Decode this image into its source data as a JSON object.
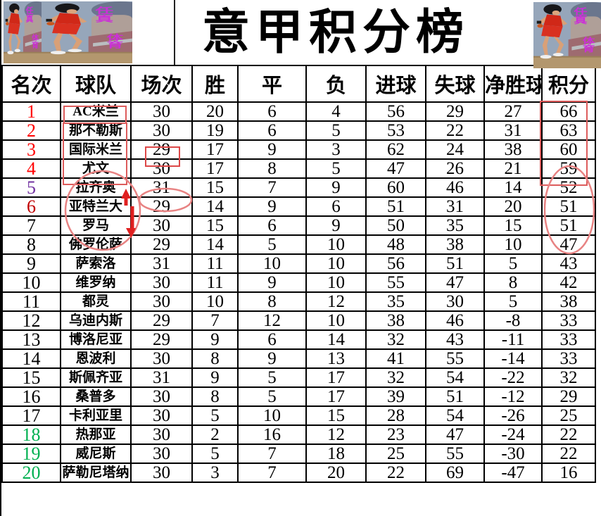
{
  "title": "意甲积分榜",
  "images": {
    "description": "slam-dunk-basketball-player-artwork",
    "watermark_top": "任真",
    "watermark_bottom": "体育",
    "watermark_color": "#cc2fd8"
  },
  "colors": {
    "rank_red": "#ff0000",
    "rank_purple": "#7030a0",
    "rank_darkred": "#c00000",
    "rank_green": "#00b050",
    "grid": "#000000",
    "annotation_box": "#dd5c5c",
    "annotation_ellipse": "#e88383",
    "annotation_arrow": "#e02020"
  },
  "chart_data": {
    "type": "table",
    "title": "意甲积分榜",
    "columns": [
      "名次",
      "球队",
      "场次",
      "胜",
      "平",
      "负",
      "进球",
      "失球",
      "净胜球",
      "积分"
    ],
    "rank_colors": [
      "red",
      "red",
      "red",
      "red",
      "purple",
      "darkred",
      "black",
      "black",
      "black",
      "black",
      "black",
      "black",
      "black",
      "black",
      "black",
      "black",
      "black",
      "green",
      "green",
      "green"
    ],
    "rows": [
      [
        "1",
        "AC米兰",
        "30",
        "20",
        "6",
        "4",
        "56",
        "29",
        "27",
        "66"
      ],
      [
        "2",
        "那不勒斯",
        "30",
        "19",
        "6",
        "5",
        "53",
        "22",
        "31",
        "63"
      ],
      [
        "3",
        "国际米兰",
        "29",
        "17",
        "9",
        "3",
        "62",
        "24",
        "38",
        "60"
      ],
      [
        "4",
        "尤文",
        "30",
        "17",
        "8",
        "5",
        "47",
        "26",
        "21",
        "59"
      ],
      [
        "5",
        "拉齐奥",
        "31",
        "15",
        "7",
        "9",
        "60",
        "46",
        "14",
        "52"
      ],
      [
        "6",
        "亚特兰大",
        "29",
        "14",
        "9",
        "6",
        "51",
        "31",
        "20",
        "51"
      ],
      [
        "7",
        "罗马",
        "30",
        "15",
        "6",
        "9",
        "50",
        "35",
        "15",
        "51"
      ],
      [
        "8",
        "佛罗伦萨",
        "29",
        "14",
        "5",
        "10",
        "48",
        "38",
        "10",
        "47"
      ],
      [
        "9",
        "萨索洛",
        "31",
        "11",
        "10",
        "10",
        "56",
        "51",
        "5",
        "43"
      ],
      [
        "10",
        "维罗纳",
        "30",
        "11",
        "9",
        "10",
        "55",
        "47",
        "8",
        "42"
      ],
      [
        "11",
        "都灵",
        "30",
        "10",
        "8",
        "12",
        "35",
        "30",
        "5",
        "38"
      ],
      [
        "12",
        "乌迪内斯",
        "29",
        "7",
        "12",
        "10",
        "38",
        "46",
        "-8",
        "33"
      ],
      [
        "13",
        "博洛尼亚",
        "29",
        "9",
        "6",
        "14",
        "32",
        "43",
        "-11",
        "33"
      ],
      [
        "14",
        "恩波利",
        "30",
        "8",
        "9",
        "13",
        "41",
        "55",
        "-14",
        "33"
      ],
      [
        "15",
        "斯佩齐亚",
        "31",
        "9",
        "5",
        "17",
        "32",
        "54",
        "-22",
        "32"
      ],
      [
        "16",
        "桑普多",
        "30",
        "8",
        "5",
        "17",
        "39",
        "51",
        "-12",
        "29"
      ],
      [
        "17",
        "卡利亚里",
        "30",
        "5",
        "10",
        "15",
        "28",
        "54",
        "-26",
        "25"
      ],
      [
        "18",
        "热那亚",
        "30",
        "2",
        "16",
        "12",
        "23",
        "47",
        "-24",
        "22"
      ],
      [
        "19",
        "威尼斯",
        "30",
        "5",
        "7",
        "18",
        "25",
        "55",
        "-30",
        "22"
      ],
      [
        "20",
        "萨勒尼塔纳",
        "30",
        "3",
        "7",
        "20",
        "22",
        "69",
        "-47",
        "16"
      ]
    ]
  },
  "annotations": [
    {
      "shape": "rect",
      "around": "球队 row 1 (AC米兰)"
    },
    {
      "shape": "rect",
      "around": "球队 rows 2-4 (那不勒斯/国际米兰/尤文)"
    },
    {
      "shape": "rect",
      "around": "场次 row 3 (29)"
    },
    {
      "shape": "rect",
      "around": "积分 rows 1-4 (66/63/60/59)"
    },
    {
      "shape": "ellipse",
      "around": "场次 row 5 (31)"
    },
    {
      "shape": "ellipse",
      "around": "球队 rows 5-7 (拉齐奥/亚特兰大/罗马)"
    },
    {
      "shape": "ellipse",
      "around": "积分 rows 5-7 (52/51/51)"
    },
    {
      "shape": "arrow-up",
      "at": "拉齐奥"
    },
    {
      "shape": "arrow-down",
      "at": "亚特兰大"
    }
  ]
}
